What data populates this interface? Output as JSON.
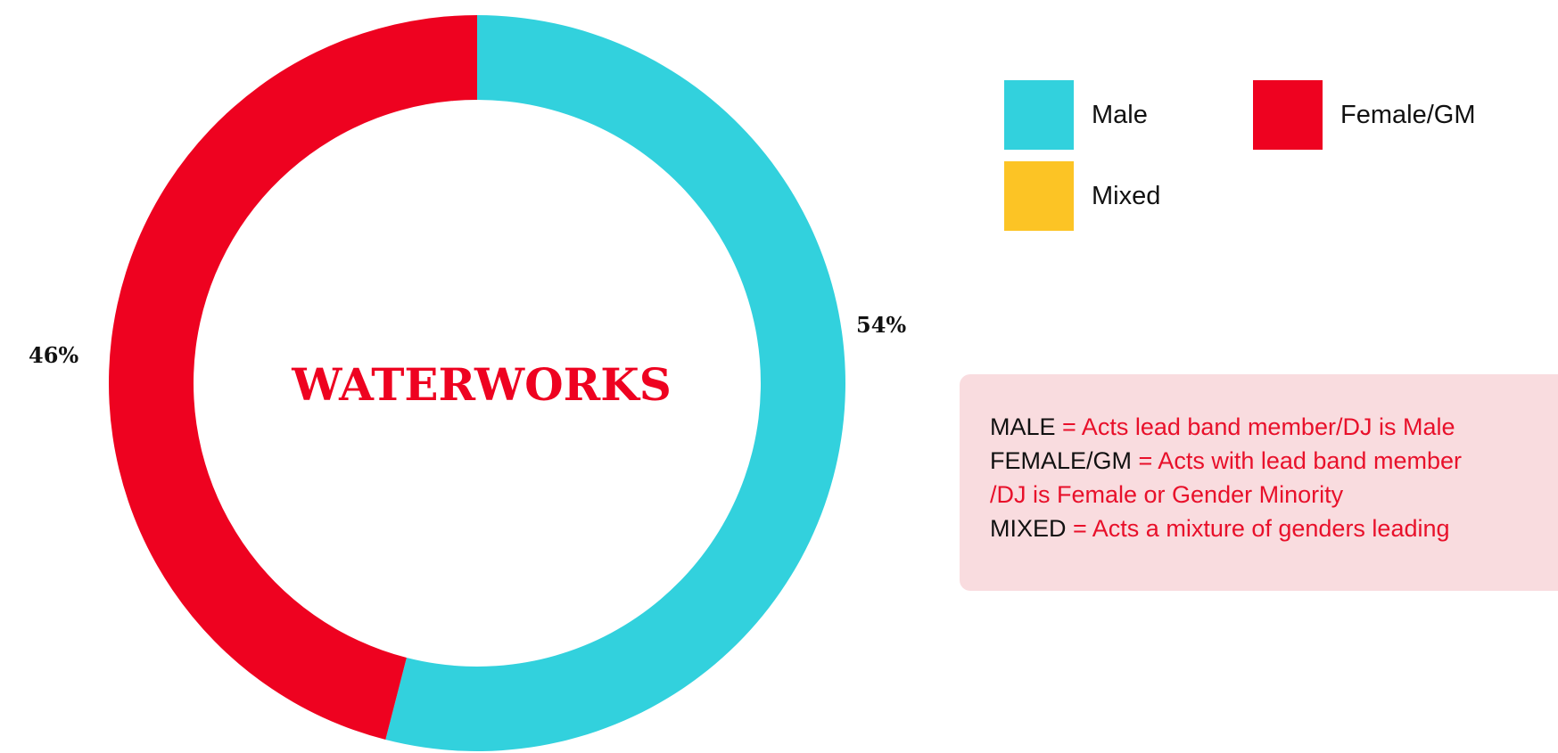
{
  "chart_data": {
    "type": "pie",
    "title": "WATERWORKS",
    "slices": [
      {
        "label": "Male",
        "value": 54,
        "value_label": "54%",
        "color": "#32d1dd"
      },
      {
        "label": "Female/GM",
        "value": 46,
        "value_label": "46%",
        "color": "#ee0220"
      },
      {
        "label": "Mixed",
        "value": 0,
        "value_label": "",
        "color": "#fcc425"
      }
    ],
    "legend": [
      {
        "label": "Male",
        "color": "#32d1dd"
      },
      {
        "label": "Female/GM",
        "color": "#ee0220"
      },
      {
        "label": "Mixed",
        "color": "#fcc425"
      }
    ],
    "legend_position": "top-right",
    "style": "donut"
  },
  "definitions": [
    {
      "term": "MALE",
      "definition": " = Acts lead band member/DJ is Male"
    },
    {
      "term": "FEMALE/GM",
      "definition": " = Acts with lead band member"
    },
    {
      "term": "",
      "definition": "/DJ is Female or Gender Minority"
    },
    {
      "term": "MIXED",
      "definition": " = Acts a mixture of genders leading"
    }
  ]
}
